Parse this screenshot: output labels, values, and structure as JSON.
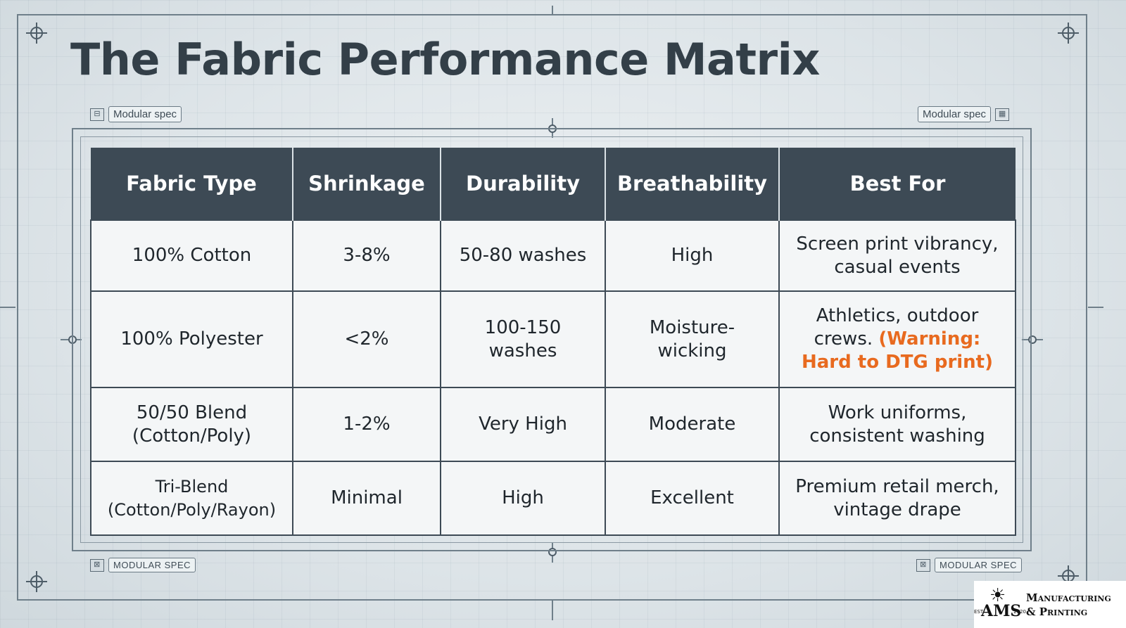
{
  "title": "The Fabric Performance Matrix",
  "spec_tags": {
    "top_left": "Modular spec",
    "top_right": "Modular spec",
    "bottom_left": "MODULAR SPEC",
    "bottom_right": "MODULAR SPEC"
  },
  "table": {
    "headers": [
      "Fabric Type",
      "Shrinkage",
      "Durability",
      "Breathability",
      "Best For"
    ],
    "rows": [
      {
        "fabric": "100% Cotton",
        "shrinkage": "3-8%",
        "durability": "50-80 washes",
        "breathability": "High",
        "best_for": "Screen print vibrancy, casual events",
        "warning": ""
      },
      {
        "fabric": "100% Polyester",
        "shrinkage": "<2%",
        "durability": "100-150 washes",
        "breathability": "Moisture-wicking",
        "best_for": "Athletics, outdoor crews.",
        "warning": "(Warning: Hard to DTG print)"
      },
      {
        "fabric": "50/50 Blend (Cotton/Poly)",
        "shrinkage": "1-2%",
        "durability": "Very High",
        "breathability": "Moderate",
        "best_for": "Work uniforms, consistent washing",
        "warning": ""
      },
      {
        "fabric": "Tri-Blend (Cotton/Poly/Rayon)",
        "shrinkage": "Minimal",
        "durability": "High",
        "breathability": "Excellent",
        "best_for": "Premium retail merch, vintage drape",
        "warning": ""
      }
    ]
  },
  "logo": {
    "mark": "AMS",
    "est": "EST",
    "year": "2020",
    "line1": "Manufacturing",
    "line2": "& Printing"
  },
  "colors": {
    "header_bg": "#3d4a55",
    "warning": "#e86a1f",
    "title": "#333f48"
  }
}
